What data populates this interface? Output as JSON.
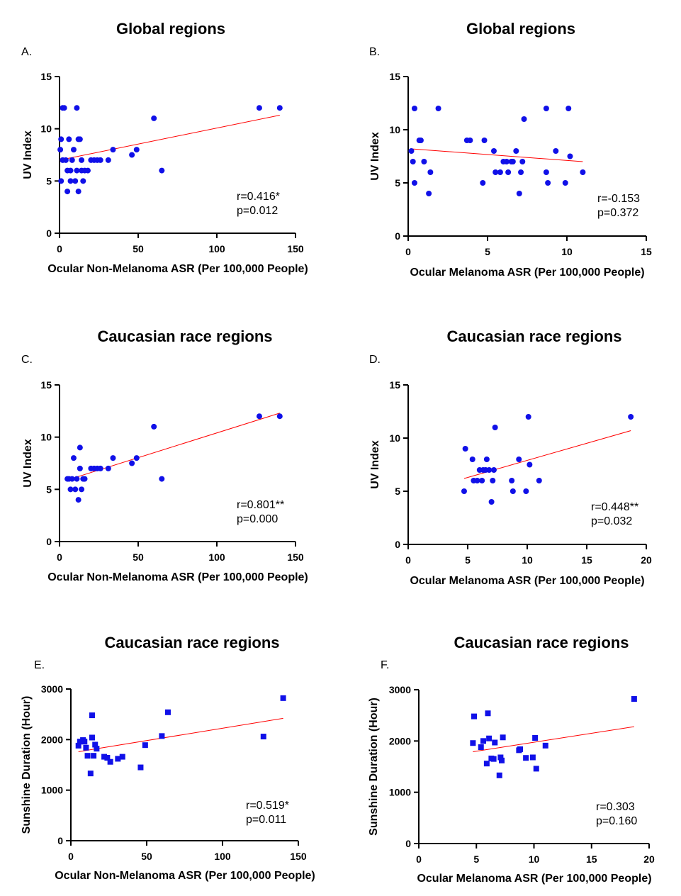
{
  "chart_data": [
    {
      "id": "A",
      "type": "scatter",
      "panel_letter": "A.",
      "title": "Global regions",
      "xlabel": "Ocular Non-Melanoma ASR (Per 100,000 People)",
      "ylabel": "UV Index",
      "xlim": [
        0,
        150
      ],
      "ylim": [
        0,
        15
      ],
      "xticks": [
        0,
        50,
        100,
        150
      ],
      "yticks": [
        0,
        5,
        10,
        15
      ],
      "marker": "circle",
      "point_color": "#1010e8",
      "line_color": "#ff0000",
      "fit": {
        "x": [
          0,
          140
        ],
        "y": [
          7.0,
          11.3
        ]
      },
      "annotation": [
        "r=0.416*",
        "p=0.012"
      ],
      "points": [
        {
          "x": 0.5,
          "y": 8
        },
        {
          "x": 1,
          "y": 9
        },
        {
          "x": 1,
          "y": 5
        },
        {
          "x": 2,
          "y": 12
        },
        {
          "x": 2,
          "y": 7
        },
        {
          "x": 3,
          "y": 12
        },
        {
          "x": 4,
          "y": 7
        },
        {
          "x": 5,
          "y": 6
        },
        {
          "x": 5,
          "y": 4
        },
        {
          "x": 6,
          "y": 9
        },
        {
          "x": 7,
          "y": 6
        },
        {
          "x": 7,
          "y": 5
        },
        {
          "x": 8,
          "y": 7
        },
        {
          "x": 9,
          "y": 8
        },
        {
          "x": 10,
          "y": 5
        },
        {
          "x": 11,
          "y": 12
        },
        {
          "x": 11,
          "y": 6
        },
        {
          "x": 12,
          "y": 9
        },
        {
          "x": 12,
          "y": 4
        },
        {
          "x": 13,
          "y": 9
        },
        {
          "x": 14,
          "y": 7
        },
        {
          "x": 14,
          "y": 6
        },
        {
          "x": 15,
          "y": 5
        },
        {
          "x": 16,
          "y": 6
        },
        {
          "x": 18,
          "y": 6
        },
        {
          "x": 20,
          "y": 7
        },
        {
          "x": 22,
          "y": 7
        },
        {
          "x": 24,
          "y": 7
        },
        {
          "x": 26,
          "y": 7
        },
        {
          "x": 31,
          "y": 7
        },
        {
          "x": 34,
          "y": 8
        },
        {
          "x": 46,
          "y": 7.5
        },
        {
          "x": 49,
          "y": 8
        },
        {
          "x": 60,
          "y": 11
        },
        {
          "x": 65,
          "y": 6
        },
        {
          "x": 127,
          "y": 12
        },
        {
          "x": 140,
          "y": 12
        }
      ]
    },
    {
      "id": "B",
      "type": "scatter",
      "panel_letter": "B.",
      "title": "Global regions",
      "xlabel": "Ocular Melanoma ASR (Per 100,000 People)",
      "ylabel": "UV Index",
      "xlim": [
        0,
        15
      ],
      "ylim": [
        0,
        15
      ],
      "xticks": [
        0,
        5,
        10,
        15
      ],
      "yticks": [
        0,
        5,
        10,
        15
      ],
      "marker": "circle",
      "point_color": "#1010e8",
      "line_color": "#ff0000",
      "fit": {
        "x": [
          0.2,
          11
        ],
        "y": [
          8.2,
          7.0
        ]
      },
      "annotation": [
        "r=-0.153",
        "p=0.372"
      ],
      "points": [
        {
          "x": 0.2,
          "y": 8
        },
        {
          "x": 0.3,
          "y": 7
        },
        {
          "x": 0.4,
          "y": 12
        },
        {
          "x": 0.4,
          "y": 5
        },
        {
          "x": 0.7,
          "y": 9
        },
        {
          "x": 0.8,
          "y": 9
        },
        {
          "x": 1.0,
          "y": 7
        },
        {
          "x": 1.3,
          "y": 4
        },
        {
          "x": 1.4,
          "y": 6
        },
        {
          "x": 1.9,
          "y": 12
        },
        {
          "x": 3.7,
          "y": 9
        },
        {
          "x": 3.9,
          "y": 9
        },
        {
          "x": 4.7,
          "y": 5
        },
        {
          "x": 4.8,
          "y": 9
        },
        {
          "x": 5.4,
          "y": 8
        },
        {
          "x": 5.5,
          "y": 6
        },
        {
          "x": 5.8,
          "y": 6
        },
        {
          "x": 6.0,
          "y": 7
        },
        {
          "x": 6.2,
          "y": 7
        },
        {
          "x": 6.3,
          "y": 6
        },
        {
          "x": 6.5,
          "y": 7
        },
        {
          "x": 6.6,
          "y": 7
        },
        {
          "x": 6.8,
          "y": 8
        },
        {
          "x": 7.0,
          "y": 4
        },
        {
          "x": 7.1,
          "y": 6
        },
        {
          "x": 7.2,
          "y": 7
        },
        {
          "x": 7.3,
          "y": 11
        },
        {
          "x": 8.7,
          "y": 12
        },
        {
          "x": 8.7,
          "y": 6
        },
        {
          "x": 8.8,
          "y": 5
        },
        {
          "x": 9.3,
          "y": 8
        },
        {
          "x": 9.9,
          "y": 5
        },
        {
          "x": 10.1,
          "y": 12
        },
        {
          "x": 10.2,
          "y": 7.5
        },
        {
          "x": 11.0,
          "y": 6
        }
      ]
    },
    {
      "id": "C",
      "type": "scatter",
      "panel_letter": "C.",
      "title": "Caucasian race regions",
      "xlabel": "Ocular Non-Melanoma ASR (Per 100,000 People)",
      "ylabel": "UV Index",
      "xlim": [
        0,
        150
      ],
      "ylim": [
        0,
        15
      ],
      "xticks": [
        0,
        50,
        100,
        150
      ],
      "yticks": [
        0,
        5,
        10,
        15
      ],
      "marker": "circle",
      "point_color": "#1010e8",
      "line_color": "#ff0000",
      "fit": {
        "x": [
          5,
          140
        ],
        "y": [
          5.9,
          12.3
        ]
      },
      "annotation": [
        "r=0.801**",
        "p=0.000"
      ],
      "points": [
        {
          "x": 5,
          "y": 6
        },
        {
          "x": 6,
          "y": 6
        },
        {
          "x": 7,
          "y": 5
        },
        {
          "x": 8,
          "y": 6
        },
        {
          "x": 9,
          "y": 8
        },
        {
          "x": 10,
          "y": 5
        },
        {
          "x": 11,
          "y": 6
        },
        {
          "x": 12,
          "y": 4
        },
        {
          "x": 13,
          "y": 7
        },
        {
          "x": 13,
          "y": 9
        },
        {
          "x": 14,
          "y": 5
        },
        {
          "x": 15,
          "y": 6
        },
        {
          "x": 16,
          "y": 6
        },
        {
          "x": 20,
          "y": 7
        },
        {
          "x": 22,
          "y": 7
        },
        {
          "x": 24,
          "y": 7
        },
        {
          "x": 26,
          "y": 7
        },
        {
          "x": 31,
          "y": 7
        },
        {
          "x": 34,
          "y": 8
        },
        {
          "x": 46,
          "y": 7.5
        },
        {
          "x": 49,
          "y": 8
        },
        {
          "x": 60,
          "y": 11
        },
        {
          "x": 65,
          "y": 6
        },
        {
          "x": 127,
          "y": 12
        },
        {
          "x": 140,
          "y": 12
        }
      ]
    },
    {
      "id": "D",
      "type": "scatter",
      "panel_letter": "D.",
      "title": "Caucasian race regions",
      "xlabel": "Ocular Melanoma ASR (Per 100,000 People)",
      "ylabel": "UV Index",
      "xlim": [
        0,
        20
      ],
      "ylim": [
        0,
        15
      ],
      "xticks": [
        0,
        5,
        10,
        15,
        20
      ],
      "yticks": [
        0,
        5,
        10,
        15
      ],
      "marker": "circle",
      "point_color": "#1010e8",
      "line_color": "#ff0000",
      "fit": {
        "x": [
          4.7,
          18.7
        ],
        "y": [
          6.2,
          10.7
        ]
      },
      "annotation": [
        "r=0.448**",
        "p=0.032"
      ],
      "points": [
        {
          "x": 4.7,
          "y": 5
        },
        {
          "x": 4.8,
          "y": 9
        },
        {
          "x": 5.4,
          "y": 8
        },
        {
          "x": 5.5,
          "y": 6
        },
        {
          "x": 5.8,
          "y": 6
        },
        {
          "x": 6.0,
          "y": 7
        },
        {
          "x": 6.2,
          "y": 6
        },
        {
          "x": 6.3,
          "y": 7
        },
        {
          "x": 6.5,
          "y": 7
        },
        {
          "x": 6.6,
          "y": 8
        },
        {
          "x": 6.8,
          "y": 7
        },
        {
          "x": 7.0,
          "y": 4
        },
        {
          "x": 7.1,
          "y": 6
        },
        {
          "x": 7.2,
          "y": 7
        },
        {
          "x": 7.3,
          "y": 11
        },
        {
          "x": 8.7,
          "y": 6
        },
        {
          "x": 8.8,
          "y": 5
        },
        {
          "x": 9.3,
          "y": 8
        },
        {
          "x": 9.9,
          "y": 5
        },
        {
          "x": 10.1,
          "y": 12
        },
        {
          "x": 10.2,
          "y": 7.5
        },
        {
          "x": 11.0,
          "y": 6
        },
        {
          "x": 18.7,
          "y": 12
        }
      ]
    },
    {
      "id": "E",
      "type": "scatter",
      "panel_letter": "E.",
      "title": "Caucasian race regions",
      "xlabel": "Ocular Non-Melanoma ASR (Per 100,000 People)",
      "ylabel": "Sunshine Duration (Hour)",
      "xlim": [
        0,
        150
      ],
      "ylim": [
        0,
        3000
      ],
      "xticks": [
        0,
        50,
        100,
        150
      ],
      "yticks": [
        0,
        1000,
        2000,
        3000
      ],
      "marker": "square",
      "point_color": "#1010e8",
      "line_color": "#ff0000",
      "fit": {
        "x": [
          5,
          140
        ],
        "y": [
          1760,
          2420
        ]
      },
      "annotation": [
        "r=0.519*",
        "p=0.011"
      ],
      "points": [
        {
          "x": 5,
          "y": 1880
        },
        {
          "x": 6,
          "y": 1960
        },
        {
          "x": 8,
          "y": 1990
        },
        {
          "x": 9,
          "y": 1960
        },
        {
          "x": 10,
          "y": 1840
        },
        {
          "x": 11,
          "y": 1680
        },
        {
          "x": 13,
          "y": 1330
        },
        {
          "x": 14,
          "y": 2040
        },
        {
          "x": 14,
          "y": 2480
        },
        {
          "x": 15,
          "y": 1680
        },
        {
          "x": 16,
          "y": 1900
        },
        {
          "x": 17,
          "y": 1820
        },
        {
          "x": 22,
          "y": 1660
        },
        {
          "x": 24,
          "y": 1640
        },
        {
          "x": 26,
          "y": 1560
        },
        {
          "x": 31,
          "y": 1620
        },
        {
          "x": 34,
          "y": 1660
        },
        {
          "x": 46,
          "y": 1450
        },
        {
          "x": 49,
          "y": 1890
        },
        {
          "x": 60,
          "y": 2070
        },
        {
          "x": 64,
          "y": 2540
        },
        {
          "x": 127,
          "y": 2060
        },
        {
          "x": 140,
          "y": 2820
        }
      ]
    },
    {
      "id": "F",
      "type": "scatter",
      "panel_letter": "F.",
      "title": "Caucasian race regions",
      "xlabel": "Ocular Melanoma ASR (Per 100,000 People)",
      "ylabel": "Sunshine Duration (Hour)",
      "xlim": [
        0,
        20
      ],
      "ylim": [
        0,
        3000
      ],
      "xticks": [
        0,
        5,
        10,
        15,
        20
      ],
      "yticks": [
        0,
        1000,
        2000,
        3000
      ],
      "marker": "square",
      "point_color": "#1010e8",
      "line_color": "#ff0000",
      "fit": {
        "x": [
          4.7,
          18.7
        ],
        "y": [
          1790,
          2280
        ]
      },
      "annotation": [
        "r=0.303",
        "p=0.160"
      ],
      "points": [
        {
          "x": 4.7,
          "y": 1960
        },
        {
          "x": 4.8,
          "y": 2480
        },
        {
          "x": 5.4,
          "y": 1880
        },
        {
          "x": 5.6,
          "y": 2000
        },
        {
          "x": 5.9,
          "y": 1560
        },
        {
          "x": 6.0,
          "y": 2540
        },
        {
          "x": 6.1,
          "y": 2050
        },
        {
          "x": 6.3,
          "y": 1660
        },
        {
          "x": 6.5,
          "y": 1650
        },
        {
          "x": 6.6,
          "y": 1970
        },
        {
          "x": 7.0,
          "y": 1330
        },
        {
          "x": 7.1,
          "y": 1680
        },
        {
          "x": 7.2,
          "y": 1620
        },
        {
          "x": 7.3,
          "y": 2070
        },
        {
          "x": 8.7,
          "y": 1820
        },
        {
          "x": 8.8,
          "y": 1840
        },
        {
          "x": 9.3,
          "y": 1670
        },
        {
          "x": 9.9,
          "y": 1680
        },
        {
          "x": 10.1,
          "y": 2060
        },
        {
          "x": 10.2,
          "y": 1460
        },
        {
          "x": 11.0,
          "y": 1910
        },
        {
          "x": 18.7,
          "y": 2820
        }
      ]
    }
  ]
}
